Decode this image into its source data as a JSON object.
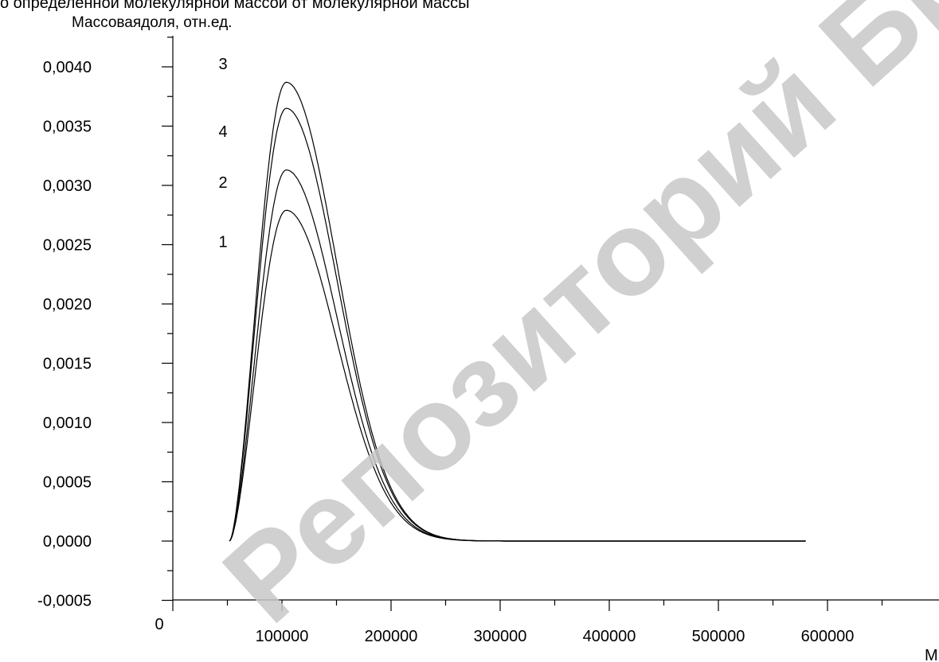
{
  "header": {
    "caption": "о определенной молекулярной массой от молекулярной массы"
  },
  "watermark": {
    "text": "Репозиторий БрГУ"
  },
  "chart_data": {
    "type": "line",
    "title": "",
    "ylabel": "Массоваядоля, отн.ед.",
    "xlabel": "М",
    "xlim": [
      0,
      650000
    ],
    "ylim": [
      -0.0005,
      0.0042
    ],
    "y_ticks": [
      "-0,0005",
      "0,0000",
      "0,0005",
      "0,0010",
      "0,0015",
      "0,0020",
      "0,0025",
      "0,0030",
      "0,0035",
      "0,0040"
    ],
    "y_tick_values": [
      -0.0005,
      0,
      0.0005,
      0.001,
      0.0015,
      0.002,
      0.0025,
      0.003,
      0.0035,
      0.004
    ],
    "x_ticks": [
      "0",
      "100000",
      "200000",
      "300000",
      "400000",
      "500000",
      "600000"
    ],
    "x_tick_values": [
      0,
      100000,
      200000,
      300000,
      400000,
      500000,
      600000
    ],
    "curve_shape": {
      "start_x": 52000,
      "peak_x": 104000,
      "end_x": 580000,
      "tail_decay": 62000
    },
    "series": [
      {
        "name": "3",
        "peak": 0.00387
      },
      {
        "name": "4",
        "peak": 0.00365
      },
      {
        "name": "2",
        "peak": 0.00313
      },
      {
        "name": "1",
        "peak": 0.00279
      }
    ],
    "curve_labels": [
      {
        "text": "3",
        "x": 42000,
        "y": 0.00398
      },
      {
        "text": "4",
        "x": 42000,
        "y": 0.00341
      },
      {
        "text": "2",
        "x": 42000,
        "y": 0.00298
      },
      {
        "text": "1",
        "x": 42000,
        "y": 0.00248
      }
    ]
  }
}
